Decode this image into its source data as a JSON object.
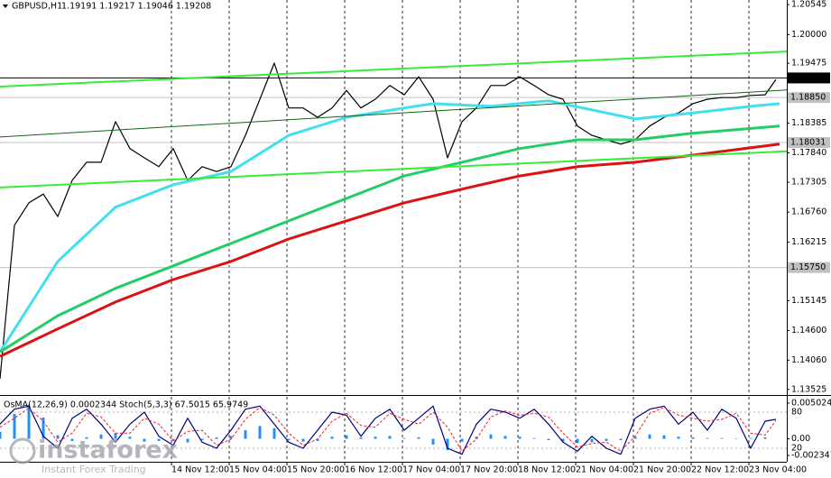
{
  "chart_data": [
    {
      "type": "line",
      "symbol": "GBPUSD,H1",
      "ohlc": "1.19191 1.19217 1.19046 1.19208",
      "xlim": [
        0,
        218
      ],
      "ylim": [
        1.1344,
        1.2063
      ],
      "xticks": [
        {
          "value": 47.5,
          "label": "14 Nov 12:00"
        },
        {
          "value": 63.5,
          "label": "15 Nov 04:00"
        },
        {
          "value": 79.5,
          "label": "15 Nov 20:00"
        },
        {
          "value": 95.5,
          "label": "16 Nov 12:00"
        },
        {
          "value": 111.5,
          "label": "17 Nov 04:00"
        },
        {
          "value": 127.5,
          "label": "17 Nov 20:00"
        },
        {
          "value": 143.5,
          "label": "18 Nov 12:00"
        },
        {
          "value": 159.5,
          "label": "21 Nov 04:00"
        },
        {
          "value": 175.5,
          "label": "21 Nov 20:00"
        },
        {
          "value": 191.5,
          "label": "22 Nov 12:00"
        },
        {
          "value": 207.5,
          "label": "23 Nov 04:00"
        }
      ],
      "yticks": [
        1.20545,
        {
          "value": 1.2,
          "label": "1.20000"
        },
        1.19475,
        1.18385,
        {
          "value": 1.1784,
          "label": "1.17840"
        },
        1.17305,
        {
          "value": 1.1676,
          "label": "1.16760"
        },
        1.16215,
        1.15145,
        {
          "value": 1.146,
          "label": "1.14600"
        },
        {
          "value": 1.1406,
          "label": "1.14060"
        },
        1.13525
      ],
      "levels": [
        {
          "value": 1.19208,
          "label": "1.19208",
          "color": "#000000",
          "text_color": "#ffffff"
        },
        {
          "value": 1.1885,
          "label": "1.18850",
          "color": "#c0c0c0",
          "text_color": "#000000"
        },
        {
          "value": 1.18031,
          "label": "1.18031",
          "color": "#c0c0c0",
          "text_color": "#000000"
        },
        {
          "value": 1.1575,
          "label": "1.15750",
          "color": "#c0c0c0",
          "text_color": "#000000"
        }
      ],
      "series": [
        {
          "type": "line",
          "color": "#000000",
          "width": 1.2,
          "x": [
            0,
            4,
            8,
            12,
            16,
            20,
            24,
            28,
            32,
            36,
            40,
            44,
            48,
            52,
            56,
            60,
            64,
            68,
            72,
            76,
            80,
            84,
            88,
            92,
            96,
            100,
            104,
            108,
            112,
            116,
            120,
            124,
            128,
            132,
            136,
            140,
            144,
            148,
            152,
            156,
            160,
            164,
            168,
            172,
            176,
            180,
            184,
            188,
            192,
            196,
            200,
            204,
            208,
            212,
            215
          ],
          "values": [
            1.1372,
            1.1652,
            1.1693,
            1.1709,
            1.1668,
            1.1734,
            1.1767,
            1.1767,
            1.1841,
            1.1792,
            1.1775,
            1.1759,
            1.1792,
            1.1734,
            1.1759,
            1.175,
            1.1759,
            1.1816,
            1.1882,
            1.1948,
            1.1866,
            1.1866,
            1.1849,
            1.1866,
            1.1898,
            1.1866,
            1.1882,
            1.1907,
            1.189,
            1.1923,
            1.1882,
            1.1775,
            1.1841,
            1.1866,
            1.1907,
            1.1907,
            1.1923,
            1.1907,
            1.189,
            1.1882,
            1.1833,
            1.1816,
            1.1808,
            1.18,
            1.1808,
            1.1833,
            1.1849,
            1.1857,
            1.1874,
            1.1882,
            1.1885,
            1.1885,
            1.1889,
            1.189,
            1.1918
          ]
        },
        {
          "type": "line",
          "color": "#40e0f0",
          "width": 3,
          "x": [
            0,
            16,
            32,
            48,
            64,
            80,
            96,
            112,
            120,
            136,
            152,
            168,
            176,
            192,
            208,
            216
          ],
          "values": [
            1.1421,
            1.1586,
            1.1685,
            1.1726,
            1.175,
            1.1816,
            1.1849,
            1.1866,
            1.1874,
            1.1869,
            1.1879,
            1.1857,
            1.1846,
            1.1857,
            1.1869,
            1.1874
          ]
        },
        {
          "type": "line",
          "color": "#22cc66",
          "width": 3,
          "x": [
            0,
            16,
            32,
            48,
            64,
            80,
            96,
            112,
            128,
            144,
            160,
            176,
            192,
            216
          ],
          "values": [
            1.1421,
            1.1487,
            1.1537,
            1.1578,
            1.1619,
            1.166,
            1.1701,
            1.1742,
            1.1767,
            1.1792,
            1.1808,
            1.1808,
            1.182,
            1.1833
          ]
        },
        {
          "type": "line",
          "color": "#dd1111",
          "width": 3,
          "x": [
            0,
            16,
            32,
            48,
            64,
            80,
            96,
            112,
            128,
            144,
            160,
            176,
            192,
            216
          ],
          "values": [
            1.1413,
            1.1463,
            1.1512,
            1.1553,
            1.1586,
            1.1627,
            1.166,
            1.1693,
            1.1718,
            1.1742,
            1.1759,
            1.1767,
            1.178,
            1.18
          ]
        },
        {
          "type": "line",
          "color": "#33ee33",
          "width": 2,
          "x": [
            0,
            218
          ],
          "values": [
            1.1905,
            1.1969
          ]
        },
        {
          "type": "line",
          "color": "#33ee33",
          "width": 2,
          "x": [
            0,
            218
          ],
          "values": [
            1.1721,
            1.1787
          ]
        },
        {
          "type": "line",
          "color": "#116611",
          "width": 1,
          "x": [
            0,
            218
          ],
          "values": [
            1.1813,
            1.1899
          ]
        }
      ]
    },
    {
      "type": "combo",
      "title": "OsMA(12,26,9) 0.0002344  Stoch(5,3,3) 67.5015 65.9749",
      "ylim": [
        -0.003237,
        0.005914
      ],
      "yticks": [
        0.0050246,
        {
          "value": 0,
          "label": "0.00"
        },
        -0.002347
      ],
      "y2lim": [
        -2.5,
        105.5
      ],
      "y2ticks": [
        80,
        20
      ],
      "series": [
        {
          "type": "bar",
          "color": "#1e90ff",
          "x": [
            0,
            4,
            8,
            12,
            16,
            20,
            24,
            28,
            32,
            36,
            40,
            44,
            48,
            52,
            56,
            60,
            64,
            68,
            72,
            76,
            80,
            84,
            88,
            92,
            96,
            100,
            104,
            108,
            112,
            116,
            120,
            124,
            128,
            132,
            136,
            140,
            144,
            148,
            152,
            156,
            160,
            164,
            168,
            172,
            176,
            180,
            184,
            188,
            192,
            196,
            200,
            204,
            208,
            212
          ],
          "values": [
            0.001,
            0.0035,
            0.0048,
            0.003,
            0.0005,
            -0.0003,
            0.0002,
            0.0006,
            0.0008,
            0.0003,
            -0.0004,
            -0.0003,
            -0.0002,
            -0.0005,
            -0.0002,
            0.0002,
            0.0004,
            0.0012,
            0.0018,
            0.0015,
            -0.0002,
            -0.0004,
            -0.0003,
            0.0003,
            0.0005,
            0.0002,
            0.0003,
            0.0004,
            0.0001,
            0.0002,
            -0.0008,
            -0.0016,
            -0.0004,
            0.0003,
            0.0006,
            0.0004,
            0.0003,
            0.0001,
            -0.0002,
            -0.0004,
            -0.0006,
            -0.0005,
            -0.0003,
            -0.0002,
            0.0003,
            0.0006,
            0.0005,
            0.0003,
            0.0002,
            0.0001,
            0.0001,
            0,
            0.0001,
            0.0002
          ]
        },
        {
          "type": "line",
          "axis": "y2",
          "color": "#000080",
          "width": 1.2,
          "x": [
            0,
            4,
            8,
            12,
            16,
            20,
            24,
            28,
            32,
            36,
            40,
            44,
            48,
            52,
            56,
            60,
            64,
            68,
            72,
            76,
            80,
            84,
            88,
            92,
            96,
            100,
            104,
            108,
            112,
            116,
            120,
            124,
            128,
            132,
            136,
            140,
            144,
            148,
            152,
            156,
            160,
            164,
            168,
            172,
            176,
            180,
            184,
            188,
            192,
            196,
            200,
            204,
            208,
            212,
            215
          ],
          "values": [
            60,
            85,
            90,
            40,
            20,
            70,
            85,
            60,
            30,
            60,
            80,
            40,
            25,
            70,
            30,
            20,
            50,
            85,
            90,
            60,
            30,
            20,
            50,
            80,
            75,
            40,
            70,
            85,
            50,
            70,
            90,
            20,
            10,
            60,
            85,
            80,
            70,
            85,
            60,
            30,
            15,
            40,
            20,
            10,
            70,
            85,
            90,
            60,
            80,
            50,
            85,
            70,
            20,
            65,
            68
          ]
        },
        {
          "type": "line",
          "axis": "y2",
          "color": "#ee2222",
          "width": 1,
          "dash": "3 2",
          "x": [
            0,
            4,
            8,
            12,
            16,
            20,
            24,
            28,
            32,
            36,
            40,
            44,
            48,
            52,
            56,
            60,
            64,
            68,
            72,
            76,
            80,
            84,
            88,
            92,
            96,
            100,
            104,
            108,
            112,
            116,
            120,
            124,
            128,
            132,
            136,
            140,
            144,
            148,
            152,
            156,
            160,
            164,
            168,
            172,
            176,
            180,
            184,
            188,
            192,
            196,
            200,
            204,
            208,
            212,
            215
          ],
          "values": [
            55,
            70,
            87,
            65,
            30,
            45,
            78,
            72,
            45,
            45,
            70,
            60,
            32,
            48,
            50,
            25,
            35,
            68,
            88,
            75,
            45,
            25,
            35,
            65,
            78,
            58,
            55,
            78,
            68,
            60,
            80,
            55,
            15,
            35,
            72,
            82,
            75,
            78,
            72,
            45,
            22,
            28,
            30,
            15,
            40,
            78,
            88,
            75,
            70,
            65,
            68,
            78,
            45,
            42,
            66
          ]
        }
      ]
    }
  ],
  "watermark": {
    "brand": "instaforex",
    "tagline": "Instant Forex Trading"
  }
}
